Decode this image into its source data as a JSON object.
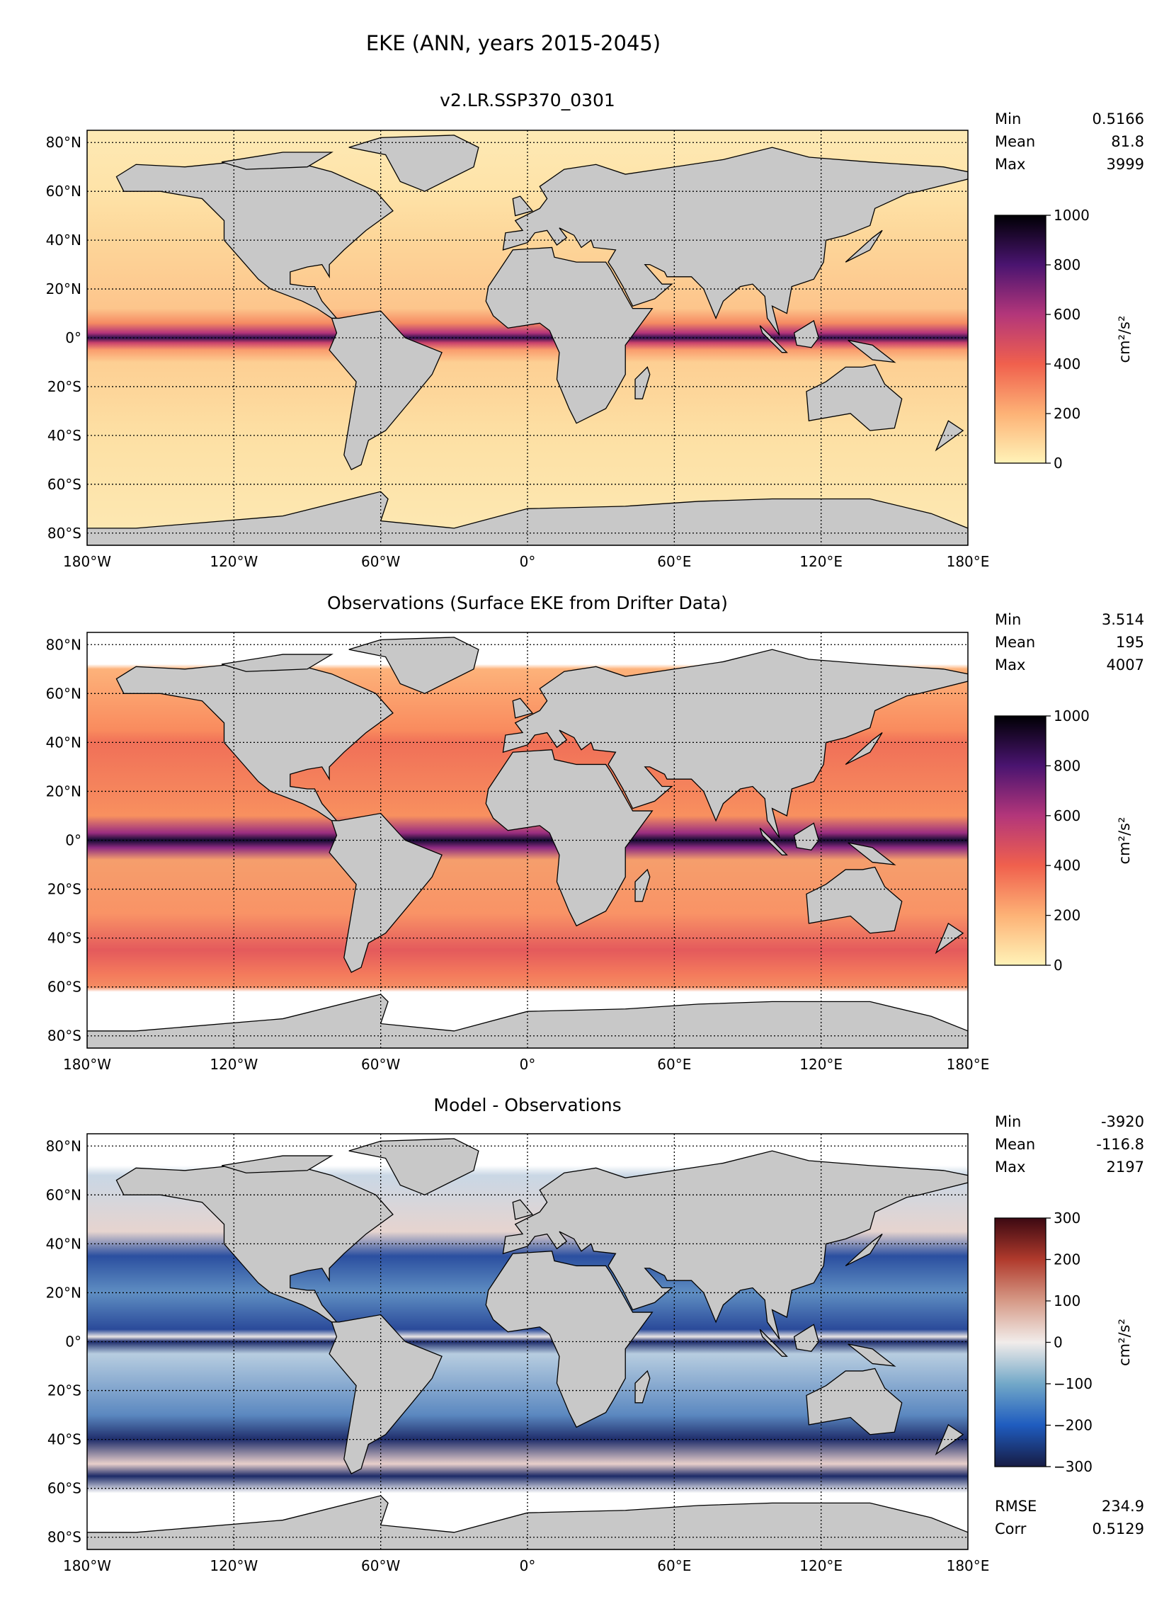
{
  "figure": {
    "suptitle": "EKE (ANN, years 2015-2045)"
  },
  "chart_data": [
    {
      "type": "heatmap",
      "title": "v2.LR.SSP370_0301",
      "stats": [
        {
          "label": "Min",
          "value": "0.5166"
        },
        {
          "label": "Mean",
          "value": "81.8"
        },
        {
          "label": "Max",
          "value": "3999"
        }
      ],
      "colorbar": {
        "label": "cm²/s²",
        "range": [
          0,
          1000
        ],
        "ticks": [
          "0",
          "200",
          "400",
          "600",
          "800",
          "1000"
        ],
        "colormap": [
          "#fff3b8",
          "#fdb276",
          "#f0604d",
          "#b3367a",
          "#4a1470",
          "#000004"
        ]
      },
      "xticks": [
        "180°W",
        "120°W",
        "60°W",
        "0°",
        "60°E",
        "120°E",
        "180°E"
      ],
      "yticks": [
        "80°N",
        "60°N",
        "40°N",
        "20°N",
        "0°",
        "20°S",
        "40°S",
        "60°S",
        "80°S"
      ],
      "grid": true
    },
    {
      "type": "heatmap",
      "title": "Observations (Surface EKE from Drifter Data)",
      "stats": [
        {
          "label": "Min",
          "value": "3.514"
        },
        {
          "label": "Mean",
          "value": "195"
        },
        {
          "label": "Max",
          "value": "4007"
        }
      ],
      "colorbar": {
        "label": "cm²/s²",
        "range": [
          0,
          1000
        ],
        "ticks": [
          "0",
          "200",
          "400",
          "600",
          "800",
          "1000"
        ],
        "colormap": [
          "#fff3b8",
          "#fdb276",
          "#f0604d",
          "#b3367a",
          "#4a1470",
          "#000004"
        ]
      },
      "xticks": [
        "180°W",
        "120°W",
        "60°W",
        "0°",
        "60°E",
        "120°E",
        "180°E"
      ],
      "yticks": [
        "80°N",
        "60°N",
        "40°N",
        "20°N",
        "0°",
        "20°S",
        "40°S",
        "60°S",
        "80°S"
      ],
      "grid": true
    },
    {
      "type": "heatmap",
      "title": "Model - Observations",
      "stats": [
        {
          "label": "Min",
          "value": "-3920"
        },
        {
          "label": "Mean",
          "value": "-116.8"
        },
        {
          "label": "Max",
          "value": "2197"
        }
      ],
      "extra_stats": [
        {
          "label": "RMSE",
          "value": "234.9"
        },
        {
          "label": "Corr",
          "value": "0.5129"
        }
      ],
      "colorbar": {
        "label": "cm²/s²",
        "range": [
          -300,
          300
        ],
        "ticks": [
          "−300",
          "−200",
          "−100",
          "0",
          "100",
          "200",
          "300"
        ],
        "colormap": [
          "#171c44",
          "#1f5cbf",
          "#72a8c8",
          "#f1ecea",
          "#d69a87",
          "#b03a2c",
          "#3c0912"
        ]
      },
      "xticks": [
        "180°W",
        "120°W",
        "60°W",
        "0°",
        "60°E",
        "120°E",
        "180°E"
      ],
      "yticks": [
        "80°N",
        "60°N",
        "40°N",
        "20°N",
        "0°",
        "20°S",
        "40°S",
        "60°S",
        "80°S"
      ],
      "grid": true
    }
  ],
  "colors": {
    "land": "#c8c8c8",
    "coast": "#000000"
  }
}
